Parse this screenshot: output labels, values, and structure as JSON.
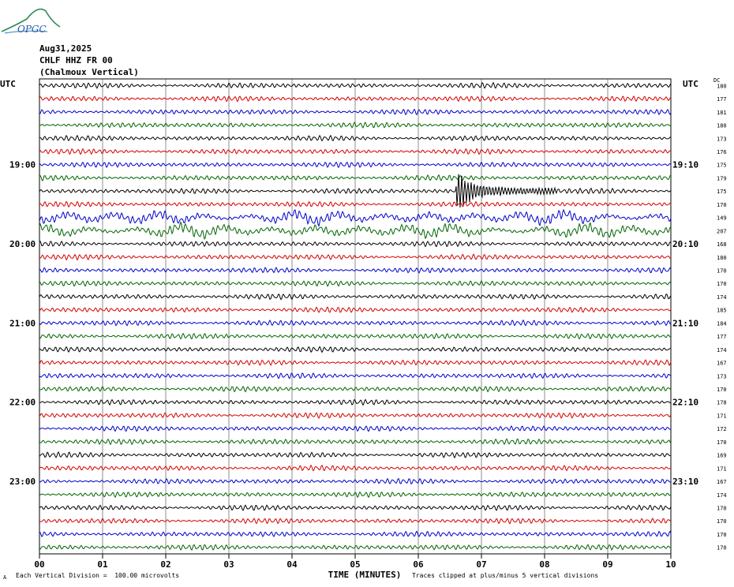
{
  "header": {
    "logo_text": "OPGC",
    "date": "Aug31,2025",
    "station": "CHLF HHZ FR 00",
    "location": "(Chalmoux Vertical)",
    "left_tz": "UTC",
    "right_tz": "UTC",
    "dc_label": "DC"
  },
  "footer": {
    "scale_note": "Each Vertical Division =  100.00 microvolts",
    "clip_note": "Traces clipped at plus/minus 5 vertical divisions",
    "corner_mark": "A"
  },
  "colors": {
    "cycle": [
      "#000000",
      "#d40000",
      "#0000cc",
      "#006400"
    ],
    "grid": "#000000"
  },
  "chart_data": {
    "type": "line",
    "title": "CHLF HHZ FR 00 (Chalmoux Vertical)",
    "xlabel": "TIME (MINUTES)",
    "xlim": [
      0,
      10
    ],
    "x_ticks": [
      "00",
      "01",
      "02",
      "03",
      "04",
      "05",
      "06",
      "07",
      "08",
      "09",
      "10"
    ],
    "left_hour_labels": [
      "19:00",
      "20:00",
      "21:00",
      "22:00",
      "23:00"
    ],
    "right_hour_labels": [
      "19:10",
      "20:10",
      "21:10",
      "22:10",
      "23:10"
    ],
    "hour_label_rows": [
      6,
      12,
      18,
      24,
      30
    ],
    "traces_per_hour": 6,
    "trace_count": 36,
    "dc_offsets": [
      180,
      177,
      181,
      180,
      173,
      176,
      175,
      179,
      175,
      170,
      149,
      207,
      168,
      180,
      170,
      170,
      174,
      185,
      184,
      177,
      174,
      167,
      173,
      170,
      178,
      171,
      172,
      170,
      169,
      171,
      167,
      174,
      170,
      170,
      170,
      170
    ],
    "annotations": [
      {
        "trace": 8,
        "type": "local event",
        "start_min": 6.6,
        "duration_min": 1.6
      }
    ],
    "noisy_traces": [
      10,
      11
    ]
  }
}
